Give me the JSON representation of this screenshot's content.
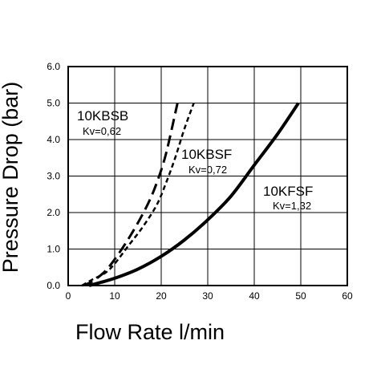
{
  "chart_data": {
    "type": "line",
    "xlabel": "Flow Rate l/min",
    "ylabel": "Pressure Drop (bar)",
    "xlim": [
      0,
      60
    ],
    "ylim": [
      0,
      6
    ],
    "grid": true,
    "x_ticks": [
      "0",
      "10",
      "20",
      "30",
      "40",
      "50",
      "60"
    ],
    "y_ticks": [
      "0.0",
      "1.0",
      "2.0",
      "3.0",
      "4.0",
      "5.0",
      "6.0"
    ],
    "series": [
      {
        "name": "10KBSB",
        "annotation": "Kv=0,62",
        "style": "long-dash",
        "points": [
          [
            3.0,
            0.0
          ],
          [
            5.0,
            0.1
          ],
          [
            8.0,
            0.4
          ],
          [
            11.0,
            0.9
          ],
          [
            14.0,
            1.5
          ],
          [
            17.0,
            2.2
          ],
          [
            19.0,
            2.8
          ],
          [
            21.0,
            3.6
          ],
          [
            23.5,
            5.0
          ]
        ]
      },
      {
        "name": "10KBSF",
        "annotation": "Kv=0,72",
        "style": "short-dash",
        "points": [
          [
            3.0,
            0.0
          ],
          [
            5.0,
            0.15
          ],
          [
            8.0,
            0.35
          ],
          [
            10.0,
            0.6
          ],
          [
            13.0,
            1.1
          ],
          [
            16.0,
            1.6
          ],
          [
            19.0,
            2.2
          ],
          [
            21.0,
            2.8
          ],
          [
            23.0,
            3.5
          ],
          [
            25.0,
            4.3
          ],
          [
            27.0,
            5.0
          ]
        ]
      },
      {
        "name": "10KFSF",
        "annotation": "Kv=1,32",
        "style": "solid",
        "points": [
          [
            4.5,
            0.0
          ],
          [
            6.0,
            0.05
          ],
          [
            10.0,
            0.2
          ],
          [
            15.0,
            0.45
          ],
          [
            20.0,
            0.8
          ],
          [
            25.0,
            1.25
          ],
          [
            30.0,
            1.8
          ],
          [
            35.0,
            2.45
          ],
          [
            40.0,
            3.3
          ],
          [
            45.0,
            4.15
          ],
          [
            49.5,
            5.0
          ]
        ]
      }
    ]
  }
}
